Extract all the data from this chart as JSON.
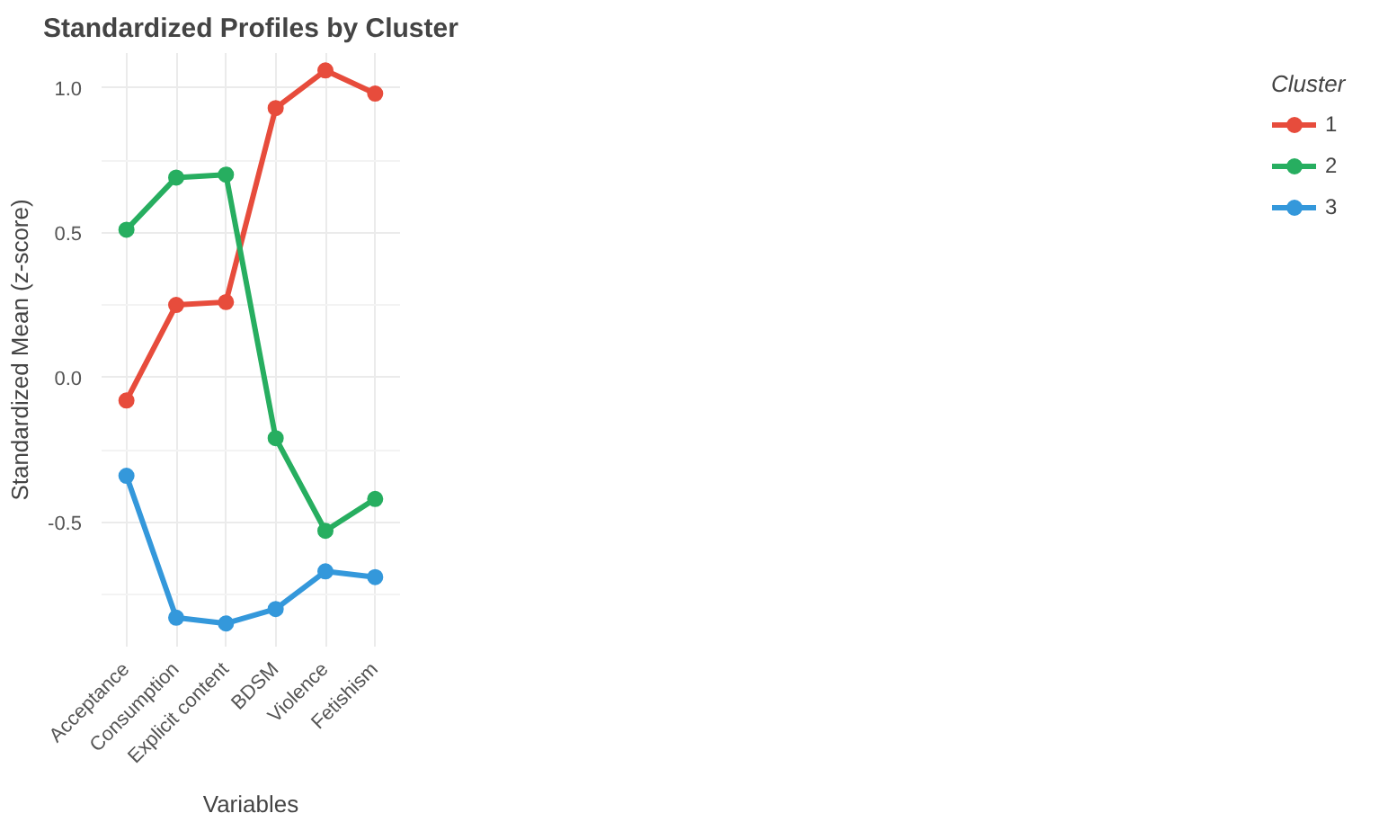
{
  "chart_data": {
    "type": "line",
    "title": "Standardized Profiles by Cluster",
    "xlabel": "Variables",
    "ylabel": "Standardized Mean (z-score)",
    "legend_title": "Cluster",
    "categories": [
      "Acceptance",
      "Consumption",
      "Explicit content",
      "BDSM",
      "Violence",
      "Fetishism"
    ],
    "series": [
      {
        "name": "1",
        "color": "#e74c3c",
        "values": [
          -0.08,
          0.25,
          0.26,
          0.93,
          1.06,
          0.98
        ]
      },
      {
        "name": "2",
        "color": "#27ae60",
        "values": [
          0.51,
          0.69,
          0.7,
          -0.21,
          -0.53,
          -0.42
        ]
      },
      {
        "name": "3",
        "color": "#3498db",
        "values": [
          -0.34,
          -0.83,
          -0.85,
          -0.8,
          -0.67,
          -0.69
        ]
      }
    ],
    "ylim": [
      -0.93,
      1.12
    ],
    "yticks": [
      {
        "value": -0.5,
        "label": "-0.5"
      },
      {
        "value": 0,
        "label": "0.0"
      },
      {
        "value": 0.5,
        "label": "0.5"
      },
      {
        "value": 1,
        "label": "1.0"
      }
    ],
    "grid": true,
    "legend": "right",
    "marker": "circle",
    "line_style": "solid"
  }
}
